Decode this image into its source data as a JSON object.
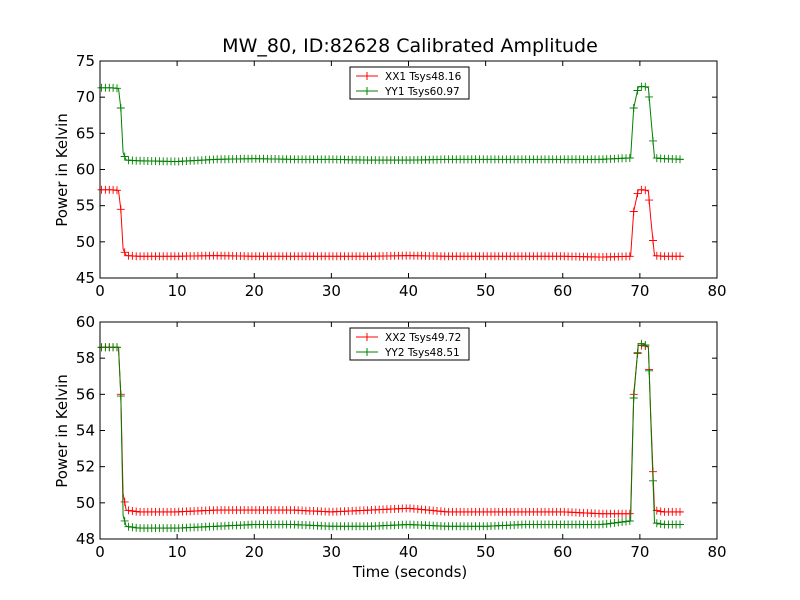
{
  "figure": {
    "title": "MW_80, ID:82628 Calibrated Amplitude",
    "xlabel": "Time (seconds)"
  },
  "chart_data": [
    {
      "type": "line",
      "ylabel": "Power in Kelvin",
      "xlim": [
        0,
        80
      ],
      "ylim": [
        45,
        75
      ],
      "xticks": [
        "0",
        "10",
        "20",
        "30",
        "40",
        "50",
        "60",
        "70",
        "80"
      ],
      "yticks": [
        "45",
        "50",
        "55",
        "60",
        "65",
        "70",
        "75"
      ],
      "legend_position": "top-center",
      "grid": false,
      "marker": "+",
      "series": [
        {
          "name": "XX1 Tsys48.16",
          "color": "#ff0000",
          "x": [
            0.2,
            1.5,
            2.4,
            2.7,
            3.0,
            3.4,
            5,
            10,
            15,
            20,
            25,
            30,
            35,
            40,
            45,
            50,
            55,
            60,
            65,
            68.8,
            69.2,
            69.8,
            70.5,
            71.1,
            71.4,
            71.9,
            73,
            75.6
          ],
          "values": [
            57.2,
            57.2,
            57.1,
            54.5,
            49.0,
            48.1,
            48.0,
            48.0,
            48.1,
            48.0,
            48.0,
            48.0,
            48.0,
            48.1,
            48.0,
            48.0,
            48.0,
            48.0,
            47.9,
            48.0,
            54.2,
            57.2,
            57.2,
            57.0,
            53.3,
            48.1,
            48.0,
            48.0
          ]
        },
        {
          "name": "YY1 Tsys60.97",
          "color": "#008000",
          "x": [
            0.2,
            1.5,
            2.4,
            2.7,
            3.0,
            3.4,
            5,
            10,
            15,
            20,
            25,
            30,
            35,
            40,
            45,
            50,
            55,
            60,
            65,
            68.8,
            69.2,
            69.8,
            70.5,
            71.1,
            71.4,
            71.9,
            73,
            75.6
          ],
          "values": [
            71.3,
            71.3,
            71.2,
            68.5,
            62.3,
            61.3,
            61.2,
            61.1,
            61.4,
            61.5,
            61.4,
            61.4,
            61.3,
            61.3,
            61.4,
            61.4,
            61.4,
            61.4,
            61.4,
            61.6,
            68.5,
            71.4,
            71.5,
            71.3,
            67.5,
            61.6,
            61.5,
            61.4
          ]
        }
      ]
    },
    {
      "type": "line",
      "ylabel": "Power in Kelvin",
      "xlim": [
        0,
        80
      ],
      "ylim": [
        48,
        60
      ],
      "xticks": [
        "0",
        "10",
        "20",
        "30",
        "40",
        "50",
        "60",
        "70",
        "80"
      ],
      "yticks": [
        "48",
        "50",
        "52",
        "54",
        "56",
        "58",
        "60"
      ],
      "legend_position": "top-center",
      "grid": false,
      "marker": "+",
      "series": [
        {
          "name": "XX2 Tsys49.72",
          "color": "#ff0000",
          "x": [
            0.2,
            1.5,
            2.4,
            2.7,
            3.0,
            3.4,
            5,
            10,
            15,
            20,
            25,
            30,
            35,
            40,
            45,
            50,
            55,
            60,
            65,
            68.8,
            69.2,
            69.8,
            70.5,
            71.1,
            71.4,
            71.9,
            73,
            75.6
          ],
          "values": [
            58.6,
            58.6,
            58.6,
            56.0,
            50.5,
            49.6,
            49.5,
            49.5,
            49.6,
            49.6,
            49.6,
            49.5,
            49.6,
            49.7,
            49.5,
            49.5,
            49.5,
            49.5,
            49.4,
            49.4,
            56.0,
            58.7,
            58.7,
            58.6,
            54.9,
            49.6,
            49.5,
            49.5
          ]
        },
        {
          "name": "YY2 Tsys48.51",
          "color": "#008000",
          "x": [
            0.2,
            1.5,
            2.4,
            2.7,
            3.0,
            3.4,
            5,
            10,
            15,
            20,
            25,
            30,
            35,
            40,
            45,
            50,
            55,
            60,
            65,
            68.8,
            69.2,
            69.8,
            70.5,
            71.1,
            71.4,
            71.9,
            73,
            75.6
          ],
          "values": [
            58.6,
            58.6,
            58.6,
            55.9,
            49.3,
            48.7,
            48.6,
            48.6,
            48.7,
            48.8,
            48.8,
            48.7,
            48.7,
            48.8,
            48.7,
            48.7,
            48.8,
            48.8,
            48.8,
            49.0,
            55.8,
            58.8,
            58.8,
            58.6,
            54.7,
            48.9,
            48.8,
            48.8
          ]
        }
      ]
    }
  ]
}
